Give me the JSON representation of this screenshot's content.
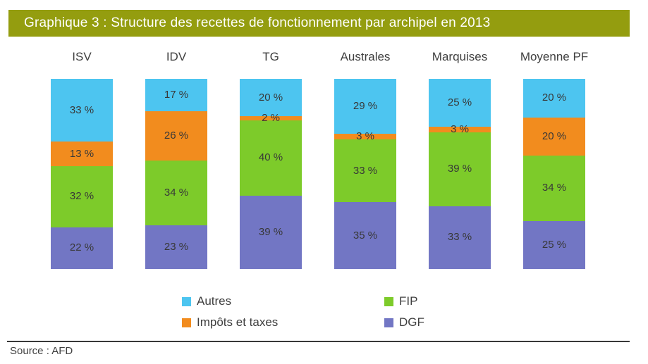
{
  "title": "Graphique 3 : Structure des recettes de fonctionnement par archipel en 2013",
  "source": "Source : AFD",
  "colors": {
    "title_bg": "#949D0F",
    "title_text": "#ffffff",
    "autres": "#4DC5F0",
    "impots_et_taxes": "#F28C1E",
    "fip": "#7DCB2A",
    "dgf": "#7276C4",
    "label_text": "#383838",
    "rule": "#383838"
  },
  "chart_data": {
    "type": "bar",
    "stacked": true,
    "percent_stacked": true,
    "title": "Graphique 3 : Structure des recettes de fonctionnement par archipel en 2013",
    "categories": [
      "ISV",
      "IDV",
      "TG",
      "Australes",
      "Marquises",
      "Moyenne PF"
    ],
    "series": [
      {
        "name": "Autres",
        "color": "#4DC5F0",
        "values": [
          33,
          17,
          20,
          29,
          25,
          20
        ]
      },
      {
        "name": "Impôts et taxes",
        "color": "#F28C1E",
        "values": [
          13,
          26,
          2,
          3,
          3,
          20
        ]
      },
      {
        "name": "FIP",
        "color": "#7DCB2A",
        "values": [
          32,
          34,
          40,
          33,
          39,
          34
        ]
      },
      {
        "name": "DGF",
        "color": "#7276C4",
        "values": [
          22,
          23,
          39,
          35,
          33,
          25
        ]
      }
    ],
    "stack_order_top_to_bottom": [
      "Autres",
      "Impôts et taxes",
      "FIP",
      "DGF"
    ],
    "value_suffix": " %",
    "legend_row_major": [
      "Autres",
      "FIP",
      "Impôts et taxes",
      "DGF"
    ],
    "legend_position": "bottom",
    "axes_visible": false,
    "grid": false,
    "ylim": [
      0,
      100
    ]
  }
}
